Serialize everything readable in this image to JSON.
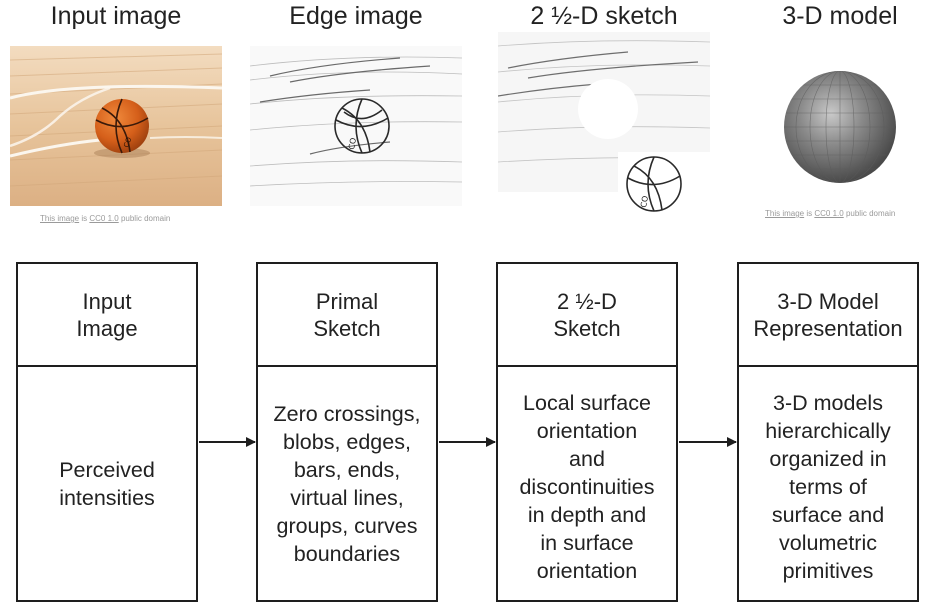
{
  "top_row": {
    "input": {
      "title": "Input image",
      "credit_link": "This image",
      "credit_mid": " is ",
      "credit_license": "CC0 1.0",
      "credit_tail": " public domain"
    },
    "edge": {
      "title": "Edge image"
    },
    "sketch": {
      "title": "2 ½-D sketch"
    },
    "model": {
      "title": "3-D model",
      "credit_link": "This image",
      "credit_mid": " is ",
      "credit_license": "CC0 1.0",
      "credit_tail": " public domain"
    }
  },
  "stages": [
    {
      "head": "Input\nImage",
      "body": "Perceived\nintensities"
    },
    {
      "head": "Primal\nSketch",
      "body": "Zero crossings,\nblobs, edges,\nbars, ends,\nvirtual lines,\ngroups, curves\nboundaries"
    },
    {
      "head": "2 ½-D\nSketch",
      "body": "Local surface\norientation\nand\ndiscontinuities\nin depth and\nin surface\norientation"
    },
    {
      "head": "3-D Model\nRepresentation",
      "body": "3-D models\nhierarchically\norganized in\nterms of\nsurface and\nvolumetric\nprimitives"
    }
  ],
  "colors": {
    "floor": "#e8c9a4",
    "ball": "#d9641c",
    "sphere": "#7a7a7a",
    "line": "#1e1e1e"
  }
}
